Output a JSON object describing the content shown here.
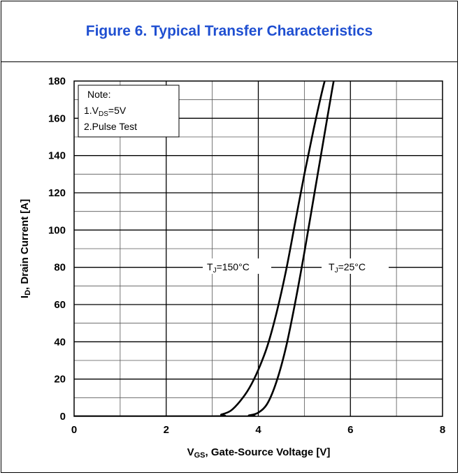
{
  "chart_data": {
    "type": "line",
    "title": "Figure 6. Typical Transfer Characteristics",
    "xlabel_main": "V",
    "xlabel_sub": "GS",
    "xlabel_rest": ", Gate-Source Voltage [V]",
    "ylabel_main": "I",
    "ylabel_sub": "D",
    "ylabel_rest": ", Drain Current [A]",
    "xlim": [
      0,
      8
    ],
    "ylim": [
      0,
      180
    ],
    "xticks": [
      "0",
      "2",
      "4",
      "6",
      "8"
    ],
    "yticks": [
      "0",
      "20",
      "40",
      "60",
      "80",
      "100",
      "120",
      "140",
      "160",
      "180"
    ],
    "grid": true,
    "note": {
      "line1": "Note:",
      "line2_prefix": "1.V",
      "line2_sub": "DS",
      "line2_suffix": "=5V",
      "line3": "2.Pulse Test"
    },
    "series": [
      {
        "name_prefix": "T",
        "name_sub": "J",
        "name_suffix": "=150°C",
        "x": [
          3.0,
          3.2,
          3.4,
          3.6,
          3.8,
          4.0,
          4.2,
          4.4,
          4.6,
          4.8,
          5.0,
          5.2,
          5.4,
          5.5
        ],
        "y": [
          0,
          1,
          3,
          8,
          15,
          25,
          38,
          56,
          78,
          104,
          130,
          154,
          176,
          185
        ]
      },
      {
        "name_prefix": "T",
        "name_sub": "J",
        "name_suffix": "=25°C",
        "x": [
          3.6,
          3.8,
          4.0,
          4.2,
          4.4,
          4.6,
          4.8,
          5.0,
          5.2,
          5.4,
          5.6,
          5.7
        ],
        "y": [
          0,
          0.5,
          2,
          7,
          19,
          37,
          61,
          88,
          117,
          146,
          175,
          188
        ]
      }
    ]
  }
}
